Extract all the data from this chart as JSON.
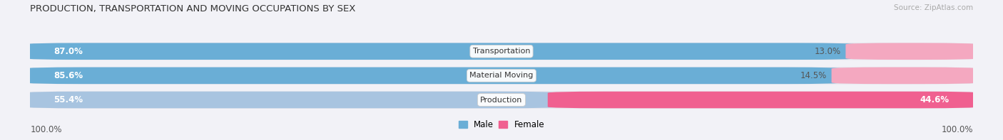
{
  "title": "PRODUCTION, TRANSPORTATION AND MOVING OCCUPATIONS BY SEX",
  "source": "Source: ZipAtlas.com",
  "categories": [
    "Transportation",
    "Material Moving",
    "Production"
  ],
  "male_pct": [
    87.0,
    85.6,
    55.4
  ],
  "female_pct": [
    13.0,
    14.5,
    44.6
  ],
  "male_color_top": "#6aaed6",
  "male_color_mid": "#6aaed6",
  "male_color_bot": "#a8c4e0",
  "female_color_top": "#f4a8c0",
  "female_color_mid": "#f4a8c0",
  "female_color_bot": "#f06090",
  "bg_color": "#f2f2f7",
  "bar_bg": "#e4e4ec",
  "label_100_color": "#555555",
  "pct_label_color_inside": "white",
  "pct_label_color_outside": "#555555",
  "cat_label_color": "#333333",
  "title_color": "#333333",
  "source_color": "#aaaaaa",
  "title_fontsize": 9.5,
  "source_fontsize": 7.5,
  "pct_fontsize": 8.5,
  "cat_fontsize": 8.0,
  "legend_fontsize": 8.5,
  "label_100_fontsize": 8.5
}
